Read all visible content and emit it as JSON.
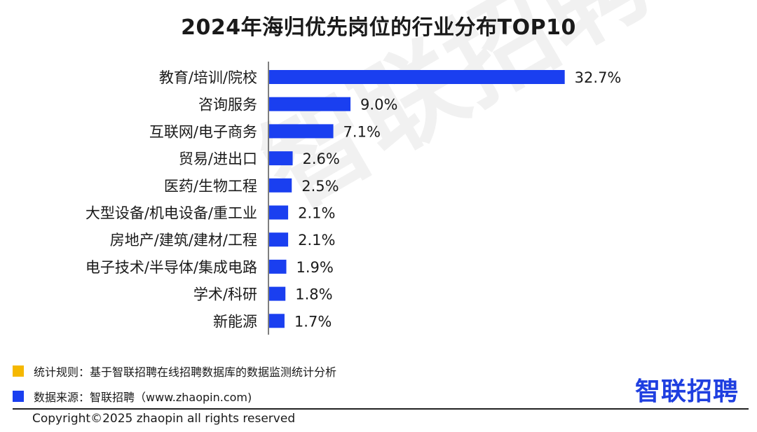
{
  "chart_data": {
    "type": "bar",
    "orientation": "horizontal",
    "title": "2024年海归优先岗位的行业分布TOP10",
    "categories": [
      "教育/培训/院校",
      "咨询服务",
      "互联网/电子商务",
      "贸易/进出口",
      "医药/生物工程",
      "大型设备/机电设备/重工业",
      "房地产/建筑/建材/工程",
      "电子技术/半导体/集成电路",
      "学术/科研",
      "新能源"
    ],
    "values": [
      32.7,
      9.0,
      7.1,
      2.6,
      2.5,
      2.1,
      2.1,
      1.9,
      1.8,
      1.7
    ],
    "labels": [
      "32.7%",
      "9.0%",
      "7.1%",
      "2.6%",
      "2.5%",
      "2.1%",
      "2.1%",
      "1.9%",
      "1.8%",
      "1.7%"
    ],
    "bar_color": "#1a3ff0",
    "xlim": [
      0,
      33.5
    ],
    "grid": false,
    "legend": "none"
  },
  "watermark": "智联招聘",
  "notes": [
    {
      "text": "统计规则：基于智联招聘在线招聘数据库的数据监测统计分析",
      "color": "#f5b800"
    },
    {
      "text": "数据来源：智联招聘（www.zhaopin.com)",
      "color": "#1a3ff0"
    }
  ],
  "brand": "智联招聘",
  "copyright": "Copyright©2025 zhaopin all rights reserved"
}
